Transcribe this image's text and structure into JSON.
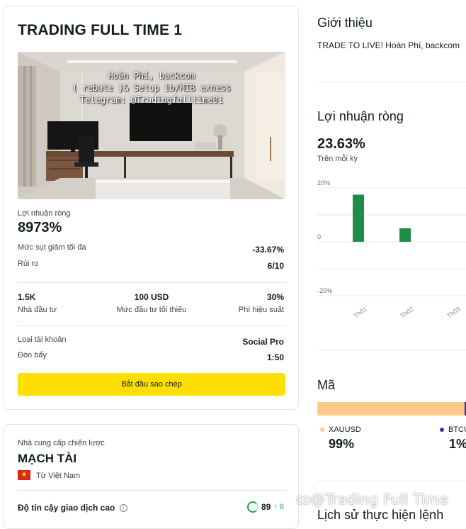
{
  "strategy": {
    "title": "TRADING FULL TIME 1",
    "banner_lines": [
      "Hoàn Phí, backcom",
      "( rebate )& Setup ib/MIB exness",
      "Telegram: @Tradingfulltime01"
    ],
    "net_profit_label": "Lợi nhuận ròng",
    "net_profit_value": "8973%",
    "max_drawdown_label": "Mức sụt giảm tối đa",
    "max_drawdown_value": "-33.67%",
    "risk_label": "Rủi ro",
    "risk_value": "6/10",
    "investors_value": "1.5K",
    "investors_label": "Nhà đầu tư",
    "min_invest_value": "100 USD",
    "min_invest_label": "Mức đầu tư tối thiểu",
    "perf_fee_value": "30%",
    "perf_fee_label": "Phí hiệu suất",
    "account_type_label": "Loại tài khoản",
    "account_type_value": "Social Pro",
    "leverage_label": "Đòn bẩy",
    "leverage_value": "1:50",
    "copy_button": "Bắt đầu sao chép"
  },
  "provider": {
    "section_label": "Nhà cung cấp chiến lược",
    "name": "MẠCH TÀI",
    "country": "Từ Việt Nam",
    "trust_label": "Độ tin cậy giao dịch cao",
    "trust_score": "89",
    "trust_change": "↑ 6"
  },
  "intro": {
    "title": "Giới thiệu",
    "text": "TRADE TO LIVE! Hoàn Phí, backcom"
  },
  "profit": {
    "title": "Lợi nhuận ròng",
    "value": "23.63%",
    "subtitle": "Trên mỗi kỳ"
  },
  "chart_data": {
    "type": "bar",
    "categories": [
      "Th01",
      "Th02",
      "Th03"
    ],
    "values": [
      17.5,
      5,
      null
    ],
    "ylim": [
      -20,
      20
    ],
    "yticks": [
      "20%",
      "0",
      "-20%"
    ],
    "bar_color": "#1e8e46",
    "grid": true
  },
  "symbols": {
    "title": "Mã",
    "items": [
      {
        "name": "XAUUSD",
        "pct": "99%",
        "color": "#ffc987"
      },
      {
        "name": "BTCUSD",
        "pct": "1%",
        "color": "#3a2fc4"
      }
    ]
  },
  "history": {
    "title": "Lịch sử thực hiện lệnh"
  },
  "watermark": "@Trading Full Time"
}
